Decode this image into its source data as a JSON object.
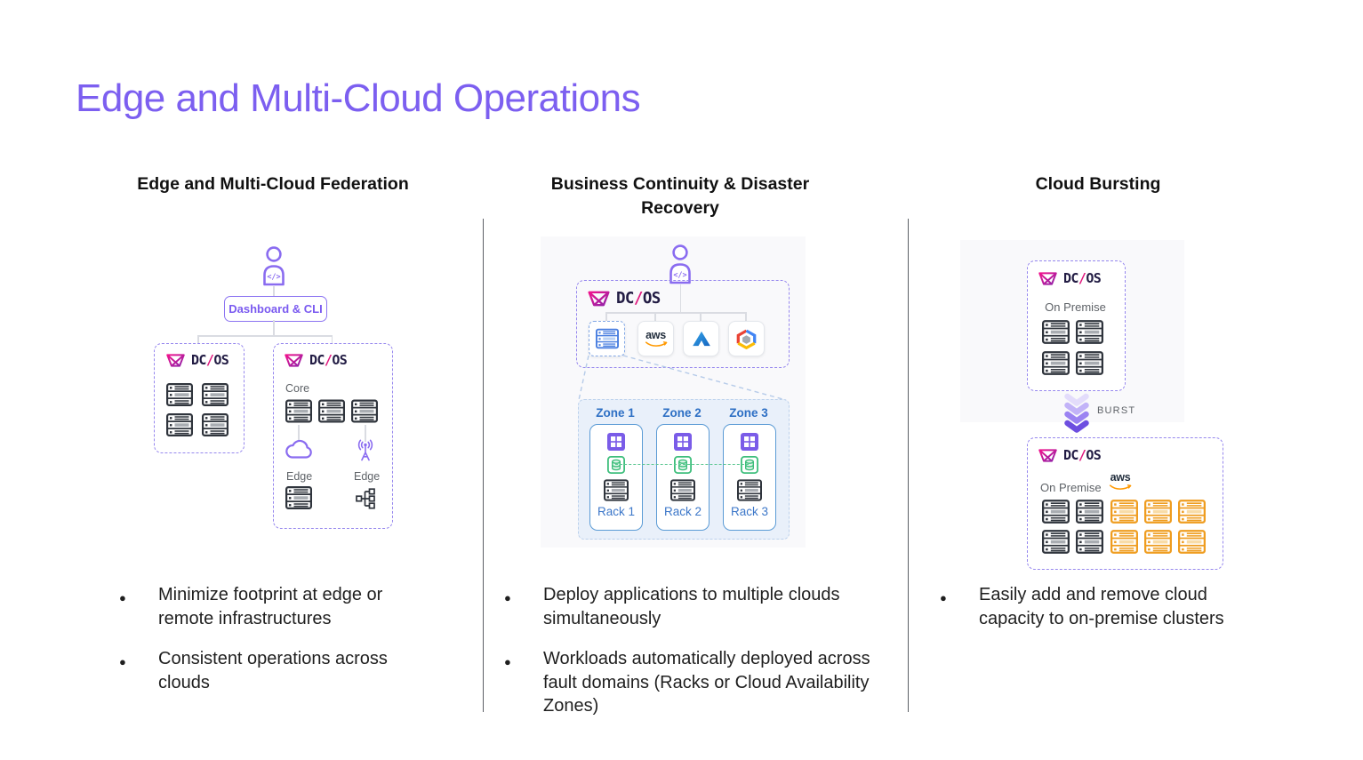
{
  "slide": {
    "title": "Edge and Multi-Cloud Operations"
  },
  "columns": [
    {
      "header": "Edge and Multi-Cloud Federation",
      "bullets": [
        "Minimize footprint at edge or remote infrastructures",
        "Consistent operations across clouds"
      ]
    },
    {
      "header": "Business Continuity & Disaster Recovery",
      "bullets": [
        "Deploy applications to multiple clouds simultaneously",
        "Workloads automatically deployed across fault domains (Racks or Cloud Availability Zones)"
      ]
    },
    {
      "header": "Cloud Bursting",
      "bullets": [
        "Easily add and remove cloud capacity to on-premise clusters"
      ]
    }
  ],
  "federation": {
    "dashboard_cli": "Dashboard & CLI",
    "core": "Core",
    "edge_left": "Edge",
    "edge_right": "Edge"
  },
  "continuity": {
    "zones": [
      {
        "name": "Zone 1",
        "rack": "Rack 1"
      },
      {
        "name": "Zone 2",
        "rack": "Rack 2"
      },
      {
        "name": "Zone 3",
        "rack": "Rack 3"
      }
    ]
  },
  "bursting": {
    "on_premise_top": "On Premise",
    "on_premise_bottom": "On Premise",
    "burst": "BURST"
  },
  "logos": {
    "dcos": {
      "dc": "DC",
      "slash": "/",
      "os": "OS"
    },
    "aws": "aws"
  },
  "icons": {
    "code_glyph": "</>",
    "names": [
      "person-operator-icon",
      "dcos-mark-icon",
      "server-rack-icon",
      "cloud-icon",
      "radio-antenna-icon",
      "network-topology-icon",
      "app-grid-icon",
      "database-icon",
      "aws-logo",
      "azure-logo",
      "gcp-logo",
      "burst-chevrons-icon"
    ]
  },
  "colors": {
    "accent": "#7c5ff0",
    "dash": "#9687ee",
    "pink": "#e0187e",
    "navy": "#221c44",
    "blue-border": "#5b9bd5",
    "zone-text": "#2d6fc4",
    "green": "#3dbe7b",
    "purple-icon": "#8a6cf0",
    "orange": "#ef9d20",
    "aws-orange": "#ff9900",
    "gray-text": "#5f6368",
    "line": "#dadce2",
    "divider": "#5c6066",
    "dark": "#2f343c"
  }
}
